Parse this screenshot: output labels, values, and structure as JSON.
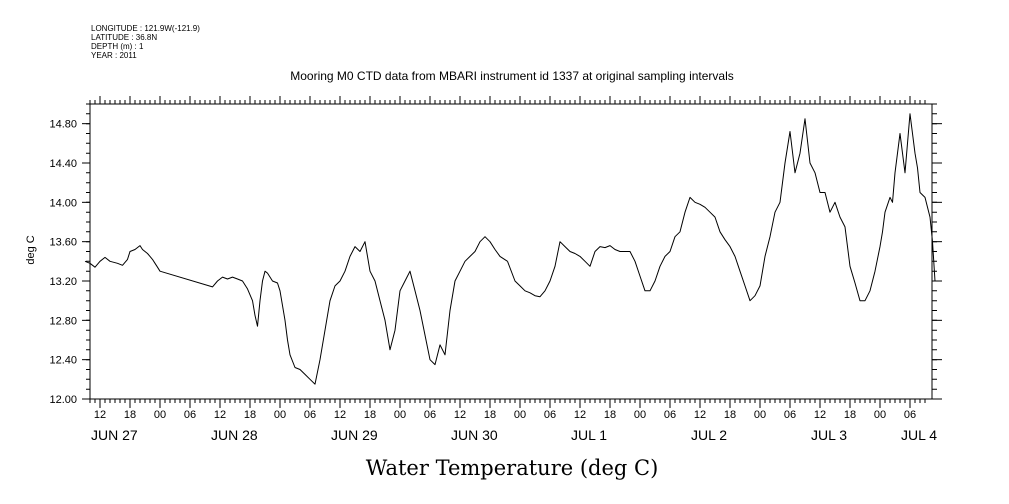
{
  "header": {
    "longitude": "LONGITUDE : 121.9W(-121.9)",
    "latitude": "LATITUDE : 36.8N",
    "depth": "DEPTH (m) : 1",
    "year": "YEAR : 2011"
  },
  "chart_data": {
    "type": "line",
    "title": "Mooring M0 CTD data from MBARI instrument id 1337 at original sampling intervals",
    "xlabel": "Water Temperature (deg C)",
    "ylabel": "deg C",
    "x_units": "hours since 2011-06-27 00:00",
    "xlim": [
      9,
      93.5
    ],
    "ylim": [
      12.0,
      15.0
    ],
    "y_ticks": [
      12.0,
      12.4,
      12.8,
      13.2,
      13.6,
      14.0,
      14.4,
      14.8
    ],
    "y_tick_labels": [
      "12.00",
      "12.40",
      "12.80",
      "13.20",
      "13.60",
      "14.00",
      "14.40",
      "14.80"
    ],
    "hour_ticks": [
      {
        "x": 12,
        "label": "12"
      },
      {
        "x": 18,
        "label": "18"
      },
      {
        "x": 24,
        "label": "00"
      },
      {
        "x": 30,
        "label": "06"
      },
      {
        "x": 36,
        "label": "12"
      },
      {
        "x": 42,
        "label": "18"
      },
      {
        "x": 48,
        "label": "00"
      },
      {
        "x": 54,
        "label": "06"
      },
      {
        "x": 60,
        "label": "12"
      },
      {
        "x": 66,
        "label": "18"
      },
      {
        "x": 72,
        "label": "00"
      },
      {
        "x": 78,
        "label": "06"
      },
      {
        "x": 84,
        "label": "12"
      },
      {
        "x": 90,
        "label": "18"
      },
      {
        "x": 96,
        "label": "00"
      },
      {
        "x": 102,
        "label": "06"
      },
      {
        "x": 108,
        "label": "12"
      },
      {
        "x": 114,
        "label": "18"
      },
      {
        "x": 120,
        "label": "00"
      },
      {
        "x": 126,
        "label": "06"
      },
      {
        "x": 132,
        "label": "12"
      },
      {
        "x": 138,
        "label": "18"
      },
      {
        "x": 144,
        "label": "00"
      },
      {
        "x": 150,
        "label": "06"
      },
      {
        "x": 156,
        "label": "12"
      },
      {
        "x": 162,
        "label": "18"
      },
      {
        "x": 168,
        "label": "00"
      },
      {
        "x": 174,
        "label": "06"
      }
    ],
    "day_labels": [
      {
        "x": 12,
        "label": "JUN 27"
      },
      {
        "x": 36,
        "label": "JUN 28"
      },
      {
        "x": 60,
        "label": "JUN 29"
      },
      {
        "x": 84,
        "label": "JUN 30"
      },
      {
        "x": 108,
        "label": "JUL 1"
      },
      {
        "x": 132,
        "label": "JUL 2"
      },
      {
        "x": 156,
        "label": "JUL 3"
      },
      {
        "x": 174,
        "label": "JUL 4"
      }
    ],
    "series": [
      {
        "name": "",
        "x": [
          9.0,
          10.0,
          11.0,
          12.0,
          13.0,
          14.0,
          15.5,
          16.5,
          17.5,
          18.0,
          19.0,
          20.0,
          20.5,
          21.0,
          21.5,
          22.0,
          22.5,
          23.0,
          23.5,
          24.0,
          34.5,
          35.5,
          36.5,
          37.5,
          38.5,
          39.5,
          40.5,
          41.5,
          42.5,
          43.0,
          43.5,
          44.0,
          44.5,
          45.0,
          45.5,
          46.5,
          47.5,
          48.0,
          48.5,
          49.0,
          49.5,
          50.0,
          51.0,
          52.0,
          53.0,
          54.0,
          55.0,
          56.0,
          57.0,
          58.0,
          59.0,
          60.0,
          61.0,
          62.0,
          63.0,
          64.0,
          65.0,
          66.0,
          67.0,
          68.0,
          69.0,
          70.0,
          71.0,
          72.0,
          73.0,
          74.0,
          75.0,
          76.0,
          77.0,
          78.0,
          79.0,
          80.0,
          81.0,
          82.0,
          83.0,
          84.0,
          85.0,
          86.0,
          87.0,
          88.0,
          89.0,
          90.0,
          91.0,
          92.0,
          93.5
        ],
        "values": [
          13.4,
          13.38,
          13.34,
          13.4,
          13.44,
          13.4,
          13.38,
          13.36,
          13.42,
          13.5,
          13.52,
          13.56,
          13.52,
          13.5,
          13.48,
          13.45,
          13.42,
          13.38,
          13.34,
          13.3,
          13.14,
          13.2,
          13.24,
          13.22,
          13.24,
          13.22,
          13.2,
          13.12,
          13.0,
          12.85,
          12.74,
          13.0,
          13.2,
          13.3,
          13.28,
          13.2,
          13.18,
          13.1,
          12.95,
          12.8,
          12.6,
          12.45,
          12.32,
          12.3,
          12.25,
          12.2,
          12.15,
          12.4,
          12.7,
          13.0,
          13.15,
          13.2,
          13.3,
          13.45,
          13.55,
          13.5,
          13.6,
          13.3,
          13.2,
          13.0,
          12.8,
          12.5,
          12.7,
          13.1,
          13.2,
          13.3,
          13.1,
          12.9,
          12.65,
          12.4,
          12.35,
          12.55,
          12.45,
          12.9,
          13.2,
          13.3,
          13.4,
          13.45,
          13.5,
          13.6,
          13.65,
          13.6,
          13.52,
          13.45,
          13.4
        ]
      },
      {
        "name": "",
        "x": [
          93.5,
          95.0,
          96.0,
          97.0,
          98.0,
          99.0,
          100.0,
          101.0,
          102.0,
          103.0,
          104.0,
          105.0,
          106.0,
          107.0,
          108.0,
          109.0,
          110.0,
          111.0,
          112.0,
          113.0,
          114.0,
          115.0,
          116.0,
          117.0,
          118.0,
          119.0,
          120.0,
          121.0,
          122.0,
          123.0,
          124.0,
          125.0,
          126.0,
          127.0,
          128.0,
          129.0,
          130.0,
          131.0,
          132.0,
          133.0,
          134.0,
          135.0,
          136.0,
          137.0,
          138.0,
          139.0,
          140.0,
          141.0,
          142.0,
          143.0,
          144.0,
          145.0,
          146.0,
          147.0,
          148.0,
          149.0,
          150.0,
          151.0,
          152.0,
          153.0,
          154.0,
          155.0,
          156.0,
          157.0,
          158.0,
          159.0,
          160.0,
          161.0,
          162.0,
          163.0,
          164.0,
          165.0,
          166.0,
          167.0,
          168.0,
          168.5,
          169.0,
          170.0,
          170.5,
          171.0,
          172.0,
          173.0,
          174.0,
          175.0,
          175.5,
          176.0,
          177.0,
          178.0,
          178.5,
          179.0
        ],
        "values": [
          13.4,
          13.2,
          13.15,
          13.1,
          13.08,
          13.05,
          13.04,
          13.1,
          13.2,
          13.35,
          13.6,
          13.55,
          13.5,
          13.48,
          13.45,
          13.4,
          13.35,
          13.5,
          13.55,
          13.54,
          13.56,
          13.52,
          13.5,
          13.5,
          13.5,
          13.4,
          13.25,
          13.1,
          13.1,
          13.2,
          13.35,
          13.45,
          13.5,
          13.65,
          13.7,
          13.9,
          14.05,
          14.0,
          13.98,
          13.95,
          13.9,
          13.85,
          13.7,
          13.62,
          13.55,
          13.45,
          13.3,
          13.15,
          13.0,
          13.05,
          13.15,
          13.45,
          13.65,
          13.9,
          14.0,
          14.4,
          14.72,
          14.3,
          14.5,
          14.85,
          14.4,
          14.3,
          14.1,
          14.1,
          13.9,
          14.0,
          13.85,
          13.75,
          13.35,
          13.18,
          13.0,
          13.0,
          13.1,
          13.3,
          13.55,
          13.7,
          13.9,
          14.05,
          14.0,
          14.3,
          14.7,
          14.3,
          14.9,
          14.5,
          14.35,
          14.1,
          14.05,
          13.85,
          13.6,
          13.2
        ]
      }
    ]
  }
}
